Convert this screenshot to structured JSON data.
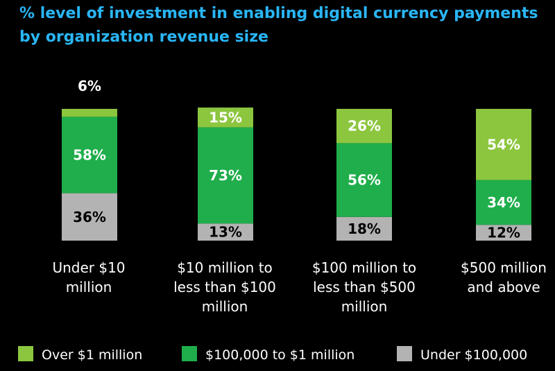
{
  "chart_data": {
    "type": "bar",
    "stacked": true,
    "title_lines": [
      "% level of investment in enabling digital currency payments",
      "by organization revenue size"
    ],
    "categories": [
      [
        "Under $10",
        "million"
      ],
      [
        "$10 million to",
        "less than $100",
        "million"
      ],
      [
        "$100 million to",
        "less than $500",
        "million"
      ],
      [
        "$500 million",
        "and above"
      ]
    ],
    "series": [
      {
        "name": "Under $100,000",
        "values": [
          36,
          13,
          18,
          12
        ],
        "color": "#b3b3b3",
        "label_color": "#000000"
      },
      {
        "name": "$100,000 to $1 million",
        "values": [
          58,
          73,
          56,
          34
        ],
        "color": "#1fae4b",
        "label_color": "#ffffff"
      },
      {
        "name": "Over $1 million",
        "values": [
          6,
          15,
          26,
          54
        ],
        "color": "#8cc63f",
        "label_color": "#ffffff"
      }
    ],
    "legend_order": [
      "Over $1 million",
      "$100,000 to $1 million",
      "Under $100,000"
    ],
    "legend_position": "bottom",
    "ylim": [
      0,
      100
    ],
    "title_color": "#29b6f6"
  }
}
